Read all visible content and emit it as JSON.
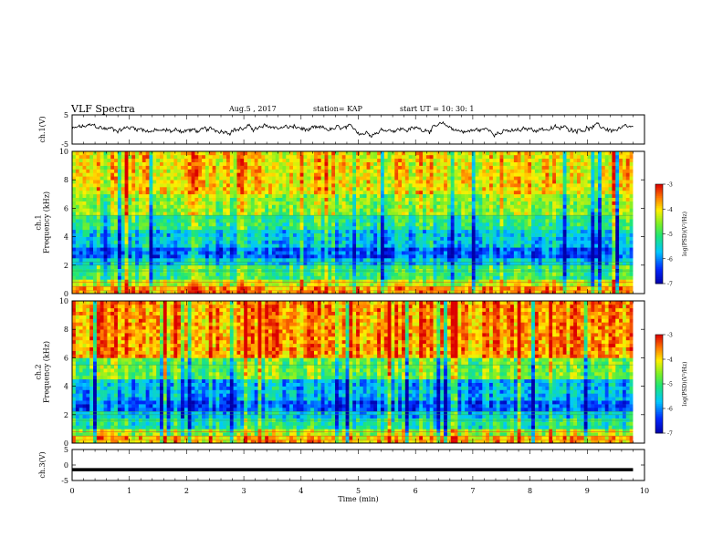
{
  "header": {
    "title": "VLF Spectra",
    "date": "Aug.5  , 2017",
    "station": "station= KAP",
    "start": "start  UT  =   10: 30: 1"
  },
  "chart_data": [
    {
      "type": "line",
      "title": "",
      "ylabel": "ch.1(V)",
      "ylim": [
        -5,
        5
      ],
      "yticks": [
        "5",
        "-5"
      ],
      "xlim": [
        0,
        10
      ],
      "signal": "noisy waveform near 0 V, amplitude about +/-2 V",
      "line_color": "#000000"
    },
    {
      "type": "heatmap",
      "title": "",
      "ylabel": "ch.1\nFrequency  (kHz)",
      "ylim": [
        0,
        10
      ],
      "yticks": [
        "0",
        "2",
        "4",
        "6",
        "8",
        "10"
      ],
      "xlim": [
        0,
        10
      ],
      "data_extent_x": [
        0,
        9.8
      ],
      "band_levels": [
        [
          0,
          0.5,
          -3.6
        ],
        [
          0.5,
          1.0,
          -4.3
        ],
        [
          1.0,
          1.9,
          -5.0
        ],
        [
          1.9,
          2.5,
          -5.6
        ],
        [
          2.5,
          3.2,
          -6.2
        ],
        [
          3.2,
          4.5,
          -5.6
        ],
        [
          4.5,
          5.5,
          -5.1
        ],
        [
          5.5,
          7.0,
          -4.5
        ],
        [
          7.0,
          10,
          -4.0
        ]
      ],
      "colorbar": {
        "label": "log(PSD)(V²/Hz)",
        "range": [
          -7,
          -3
        ],
        "ticks": [
          "-3",
          "-4",
          "-5",
          "-6",
          "-7"
        ]
      }
    },
    {
      "type": "heatmap",
      "title": "",
      "ylabel": "ch.2\nFrequency  (kHz)",
      "ylim": [
        0,
        10
      ],
      "yticks": [
        "0",
        "2",
        "4",
        "6",
        "8",
        "10"
      ],
      "xlim": [
        0,
        10
      ],
      "data_extent_x": [
        0,
        9.8
      ],
      "band_levels": [
        [
          0,
          0.5,
          -3.8
        ],
        [
          0.5,
          1.0,
          -4.4
        ],
        [
          1.0,
          1.8,
          -5.2
        ],
        [
          1.8,
          2.2,
          -5.6
        ],
        [
          2.2,
          3.1,
          -6.2
        ],
        [
          3.1,
          4.5,
          -5.7
        ],
        [
          4.5,
          6.0,
          -4.7
        ],
        [
          6.0,
          10,
          -3.6
        ]
      ],
      "colorbar": {
        "label": "log(PSD)(V²/Hz)",
        "range": [
          -7,
          -3
        ],
        "ticks": [
          "-3",
          "-4",
          "-5",
          "-6",
          "-7"
        ]
      }
    },
    {
      "type": "line",
      "title": "",
      "ylabel": "ch.3(V)",
      "ylim": [
        -5,
        5
      ],
      "yticks": [
        "5",
        "0",
        "-5"
      ],
      "xlim": [
        0,
        10
      ],
      "xlabel": "Time  (min)",
      "xticks": [
        "0",
        "1",
        "2",
        "3",
        "4",
        "5",
        "6",
        "7",
        "8",
        "9",
        "10"
      ],
      "y_value": -1.5,
      "x_extent": [
        0,
        9.8
      ],
      "line_color": "#000000"
    }
  ]
}
